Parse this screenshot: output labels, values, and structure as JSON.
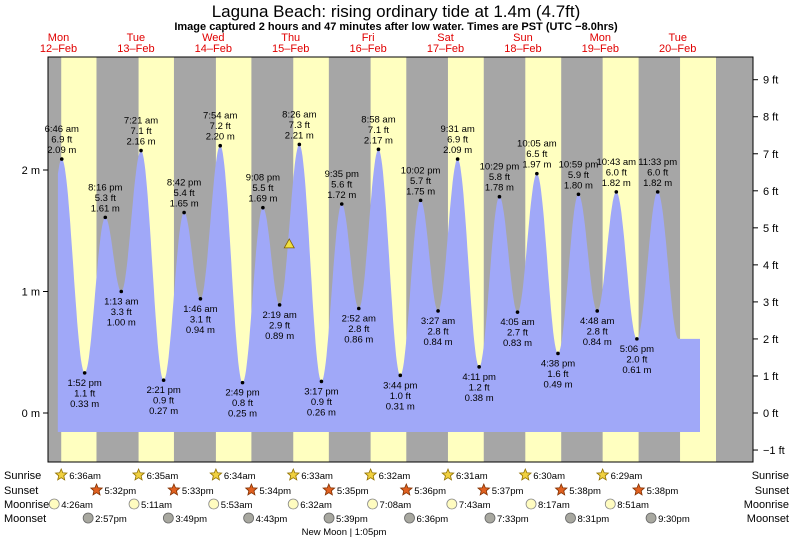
{
  "title": "Laguna Beach: rising  ordinary tide at 1.4m (4.7ft)",
  "subtitle": "Image captured 2 hours and 47 minutes after low water. Times are PST (UTC −8.0hrs)",
  "days": [
    {
      "dow": "Mon",
      "date": "12–Feb"
    },
    {
      "dow": "Tue",
      "date": "13–Feb"
    },
    {
      "dow": "Wed",
      "date": "14–Feb"
    },
    {
      "dow": "Thu",
      "date": "15–Feb"
    },
    {
      "dow": "Fri",
      "date": "16–Feb"
    },
    {
      "dow": "Sat",
      "date": "17–Feb"
    },
    {
      "dow": "Sun",
      "date": "18–Feb"
    },
    {
      "dow": "Mon",
      "date": "19–Feb"
    },
    {
      "dow": "Tue",
      "date": "20–Feb"
    }
  ],
  "row_labels": {
    "sunrise": "Sunrise",
    "sunset": "Sunset",
    "moonrise": "Moonrise",
    "moonset": "Moonset"
  },
  "sunrise": [
    "6:36am",
    "6:35am",
    "6:34am",
    "6:33am",
    "6:32am",
    "6:31am",
    "6:30am",
    "6:29am"
  ],
  "sunset": [
    "5:32pm",
    "5:33pm",
    "5:34pm",
    "5:35pm",
    "5:36pm",
    "5:37pm",
    "5:38pm",
    "5:38pm"
  ],
  "moonrise": [
    "4:26am",
    "5:11am",
    "5:53am",
    "6:32am",
    "7:08am",
    "7:43am",
    "8:17am",
    "8:51am"
  ],
  "moonset": [
    "2:57pm",
    "3:49pm",
    "4:43pm",
    "5:39pm",
    "6:36pm",
    "7:33pm",
    "8:31pm",
    "9:30pm"
  ],
  "moon_phase": "New Moon | 1:05pm",
  "current": {
    "height_m": 1.4,
    "height_ft": 4.7,
    "state": "rising"
  },
  "colors": {
    "plot_bg": "#a6a6a6",
    "day": "#ffffc0",
    "water": "#a0a8f8",
    "day_label": "#e00000",
    "sun": "#f0d040",
    "sunset": "#e06020",
    "moonrise": "#fffcc0",
    "moonset": "#a8a8a0"
  },
  "chart_data": {
    "type": "area",
    "title": "Laguna Beach: rising  ordinary tide at 1.4m (4.7ft)",
    "y_left_unit": "m",
    "y_left_ticks": [
      "0 m",
      "1 m",
      "2 m"
    ],
    "y_right_unit": "ft",
    "y_right_ticks": [
      "−1 ft",
      "0 ft",
      "1 ft",
      "2 ft",
      "3 ft",
      "4 ft",
      "5 ft",
      "6 ft",
      "7 ft",
      "8 ft",
      "9 ft"
    ],
    "ylim_m": [
      -0.35,
      2.8
    ],
    "tides": [
      {
        "type": "high",
        "time": "6:46 am",
        "ft": "6.9 ft",
        "m": 2.09
      },
      {
        "type": "low",
        "time": "1:52 pm",
        "ft": "1.1 ft",
        "m": 0.33
      },
      {
        "type": "high",
        "time": "8:16 pm",
        "ft": "5.3 ft",
        "m": 1.61
      },
      {
        "type": "low",
        "time": "1:13 am",
        "ft": "3.3 ft",
        "m": 1.0
      },
      {
        "type": "high",
        "time": "7:21 am",
        "ft": "7.1 ft",
        "m": 2.16
      },
      {
        "type": "low",
        "time": "2:21 pm",
        "ft": "0.9 ft",
        "m": 0.27
      },
      {
        "type": "high",
        "time": "8:42 pm",
        "ft": "5.4 ft",
        "m": 1.65
      },
      {
        "type": "low",
        "time": "1:46 am",
        "ft": "3.1 ft",
        "m": 0.94
      },
      {
        "type": "high",
        "time": "7:54 am",
        "ft": "7.2 ft",
        "m": 2.2
      },
      {
        "type": "low",
        "time": "2:49 pm",
        "ft": "0.8 ft",
        "m": 0.25
      },
      {
        "type": "high",
        "time": "9:08 pm",
        "ft": "5.5 ft",
        "m": 1.69
      },
      {
        "type": "low",
        "time": "2:19 am",
        "ft": "2.9 ft",
        "m": 0.89
      },
      {
        "type": "high",
        "time": "8:26 am",
        "ft": "7.3 ft",
        "m": 2.21
      },
      {
        "type": "low",
        "time": "3:17 pm",
        "ft": "0.9 ft",
        "m": 0.26
      },
      {
        "type": "high",
        "time": "9:35 pm",
        "ft": "5.6 ft",
        "m": 1.72
      },
      {
        "type": "low",
        "time": "2:52 am",
        "ft": "2.8 ft",
        "m": 0.86
      },
      {
        "type": "high",
        "time": "8:58 am",
        "ft": "7.1 ft",
        "m": 2.17
      },
      {
        "type": "low",
        "time": "3:44 pm",
        "ft": "1.0 ft",
        "m": 0.31
      },
      {
        "type": "high",
        "time": "10:02 pm",
        "ft": "5.7 ft",
        "m": 1.75
      },
      {
        "type": "low",
        "time": "3:27 am",
        "ft": "2.8 ft",
        "m": 0.84
      },
      {
        "type": "high",
        "time": "9:31 am",
        "ft": "6.9 ft",
        "m": 2.09
      },
      {
        "type": "low",
        "time": "4:11 pm",
        "ft": "1.2 ft",
        "m": 0.38
      },
      {
        "type": "high",
        "time": "10:29 pm",
        "ft": "5.8 ft",
        "m": 1.78
      },
      {
        "type": "low",
        "time": "4:05 am",
        "ft": "2.7 ft",
        "m": 0.83
      },
      {
        "type": "high",
        "time": "10:05 am",
        "ft": "6.5 ft",
        "m": 1.97
      },
      {
        "type": "low",
        "time": "4:38 pm",
        "ft": "1.6 ft",
        "m": 0.49
      },
      {
        "type": "high",
        "time": "10:59 pm",
        "ft": "5.9 ft",
        "m": 1.8
      },
      {
        "type": "low",
        "time": "4:48 am",
        "ft": "2.8 ft",
        "m": 0.84
      },
      {
        "type": "high",
        "time": "10:43 am",
        "ft": "6.0 ft",
        "m": 1.82
      },
      {
        "type": "low",
        "time": "5:06 pm",
        "ft": "2.0 ft",
        "m": 0.61
      },
      {
        "type": "high",
        "time": "11:33 pm",
        "ft": "6.0 ft",
        "m": 1.82
      }
    ]
  }
}
